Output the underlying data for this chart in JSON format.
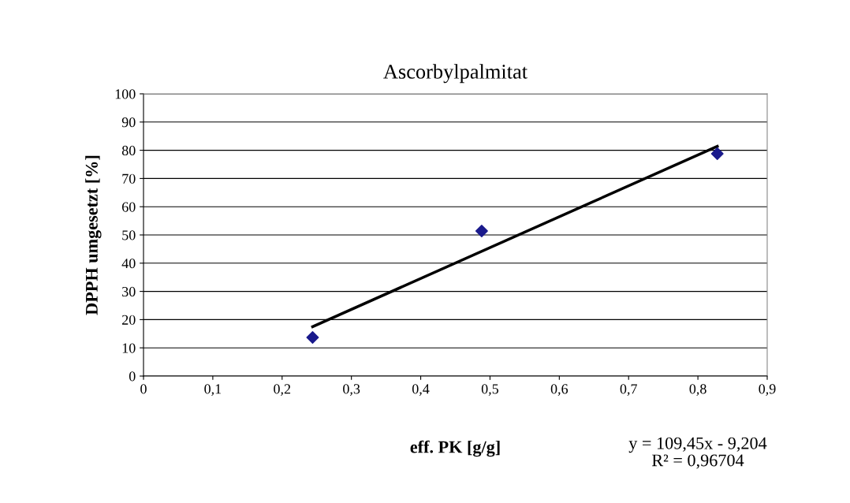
{
  "chart_data": {
    "type": "scatter",
    "title": "Ascorbylpalmitat",
    "xlabel": "eff. PK [g/g]",
    "ylabel": "DPPH umgesetzt [%]",
    "series": [
      {
        "color": "#1a1a8c",
        "marker": "diamond",
        "x": [
          0.244,
          0.488,
          0.828
        ],
        "values": [
          13.7,
          51.4,
          78.8
        ]
      },
      {
        "type": "line",
        "color": "#000000",
        "marker": "none",
        "x": [
          0.244,
          0.828
        ],
        "values": [
          17.5,
          81.4
        ]
      }
    ],
    "xlim": [
      0,
      0.9
    ],
    "xticks": [
      0,
      {
        "value": 0.1,
        "label": "0,1"
      },
      {
        "value": 0.2,
        "label": "0,2"
      },
      {
        "value": 0.3,
        "label": "0,3"
      },
      {
        "value": 0.4,
        "label": "0,4"
      },
      {
        "value": 0.5,
        "label": "0,5"
      },
      {
        "value": 0.6,
        "label": "0,6"
      },
      {
        "value": 0.7,
        "label": "0,7"
      },
      {
        "value": 0.8,
        "label": "0,8"
      },
      {
        "value": 0.9,
        "label": "0,9"
      }
    ],
    "ylim": [
      0,
      100
    ],
    "yticks": [
      0,
      10,
      20,
      30,
      40,
      50,
      60,
      70,
      80,
      90,
      100
    ],
    "grid": "y",
    "legend": false,
    "annotations": [
      "y = 109,45x - 9,204\nR² = 0,96704"
    ]
  }
}
